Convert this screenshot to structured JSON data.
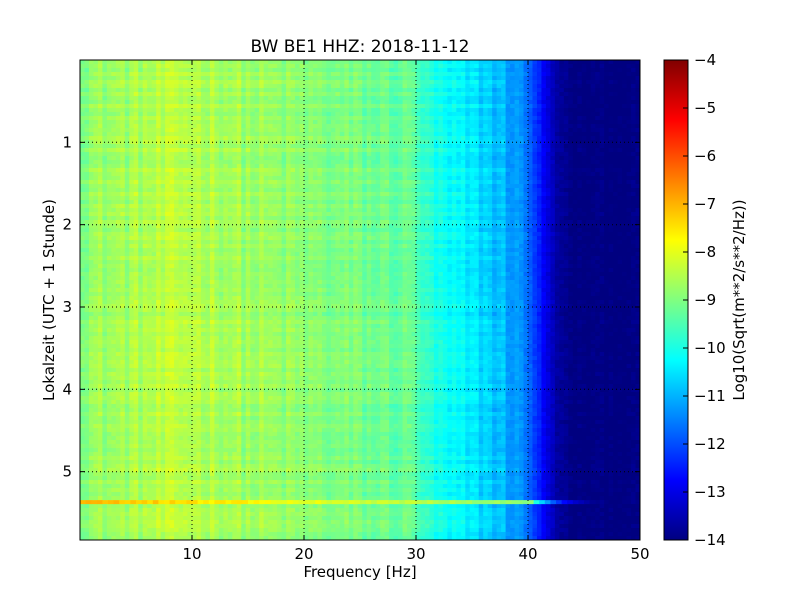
{
  "chart_data": {
    "type": "heatmap",
    "title": "BW BE1 HHZ: 2018-11-12",
    "xlabel": "Frequency [Hz]",
    "ylabel": "Lokalzeit (UTC + 1 Stunde)",
    "colorbar_label": "Log10(Sqrt(m**2/s**2/Hz))",
    "colormap": "jet",
    "xlim": [
      0,
      50
    ],
    "ylim": [
      0,
      5.83
    ],
    "y_inverted": true,
    "x_ticks": [
      10,
      20,
      30,
      40,
      50
    ],
    "y_ticks": [
      1,
      2,
      3,
      4,
      5
    ],
    "cbar_range": [
      -14,
      -4
    ],
    "cbar_ticks": [
      -4,
      -5,
      -6,
      -7,
      -8,
      -9,
      -10,
      -11,
      -12,
      -13,
      -14
    ],
    "grid": true,
    "z_profile": {
      "frequency_hz": [
        0,
        5,
        10,
        15,
        20,
        25,
        30,
        31,
        33,
        36,
        38,
        40,
        41,
        42,
        43,
        44,
        50
      ],
      "log10_amplitude": [
        -8.8,
        -8.6,
        -8.4,
        -8.7,
        -8.9,
        -9.1,
        -9.3,
        -9.9,
        -10.3,
        -10.6,
        -11.0,
        -11.6,
        -12.5,
        -13.3,
        -13.8,
        -14.0,
        -14.0
      ]
    },
    "bright_band": {
      "time_h": 5.37,
      "freq_range_hz": [
        0,
        46
      ],
      "log10_amplitude_at_low_freq": -7.0
    }
  }
}
